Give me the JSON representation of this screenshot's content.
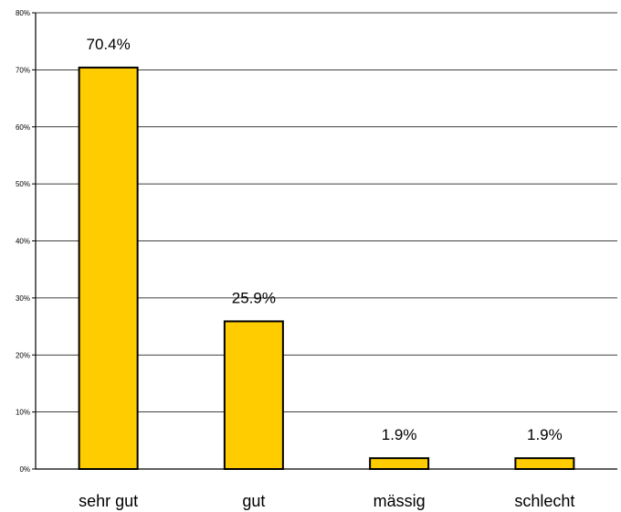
{
  "chart_data": {
    "type": "bar",
    "title": "",
    "xlabel": "",
    "ylabel": "",
    "categories": [
      "sehr gut",
      "gut",
      "mässig",
      "schlecht"
    ],
    "values": [
      70.4,
      25.9,
      1.9,
      1.9
    ],
    "data_labels": [
      "70.4%",
      "25.9%",
      "1.9%",
      "1.9%"
    ],
    "ylim": [
      0,
      80
    ],
    "y_ticks": [
      0,
      10,
      20,
      30,
      40,
      50,
      60,
      70,
      80
    ],
    "y_tick_labels": [
      "0%",
      "10%",
      "20%",
      "30%",
      "40%",
      "50%",
      "60%",
      "70%",
      "80%"
    ],
    "grid": true,
    "legend": "none",
    "colors": {
      "bar_fill": "#ffcc00",
      "bar_stroke": "#000000",
      "grid": "#000000",
      "axis": "#000000"
    }
  }
}
